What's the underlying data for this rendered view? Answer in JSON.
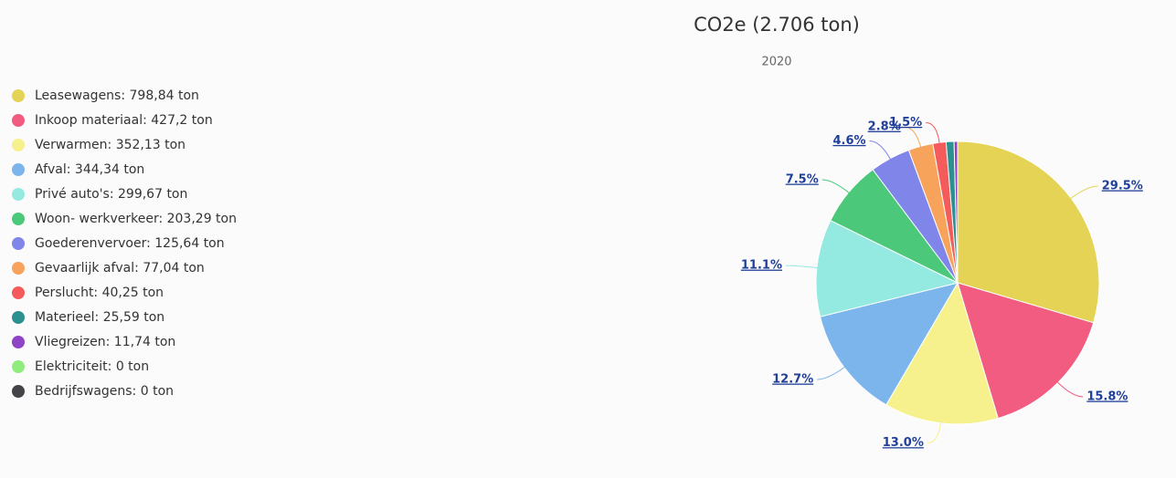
{
  "chart_data": {
    "type": "pie",
    "title": "CO2e (2.706 ton)",
    "subtitle": "2020",
    "categories": [
      "Leasewagens: 798,84 ton",
      "Inkoop materiaal: 427,2 ton",
      "Verwarmen: 352,13 ton",
      "Afval: 344,34 ton",
      "Privé auto's: 299,67 ton",
      "Woon- werkverkeer: 203,29 ton",
      "Goederenvervoer: 125,64 ton",
      "Gevaarlijk afval: 77,04 ton",
      "Perslucht: 40,25 ton",
      "Materieel: 25,59 ton",
      "Vliegreizen: 11,74 ton",
      "Elektriciteit: 0 ton",
      "Bedrijfswagens: 0 ton"
    ],
    "values": [
      29.5,
      15.8,
      13.0,
      12.7,
      11.1,
      7.5,
      4.6,
      2.8,
      1.5,
      0.9,
      0.4,
      0,
      0
    ],
    "value_labels": [
      "29.5%",
      "15.8%",
      "13.0%",
      "12.7%",
      "11.1%",
      "7.5%",
      "4.6%",
      "2.8%",
      "1.5%",
      null,
      null,
      null,
      null
    ],
    "colors": [
      "#e4d354",
      "#f15c80",
      "#f6f18c",
      "#7cb5ec",
      "#94eae1",
      "#4bc87a",
      "#8085e9",
      "#f7a35c",
      "#f45b5b",
      "#2b908f",
      "#8e44c4",
      "#90ed7d",
      "#434348"
    ],
    "legend": "left"
  }
}
